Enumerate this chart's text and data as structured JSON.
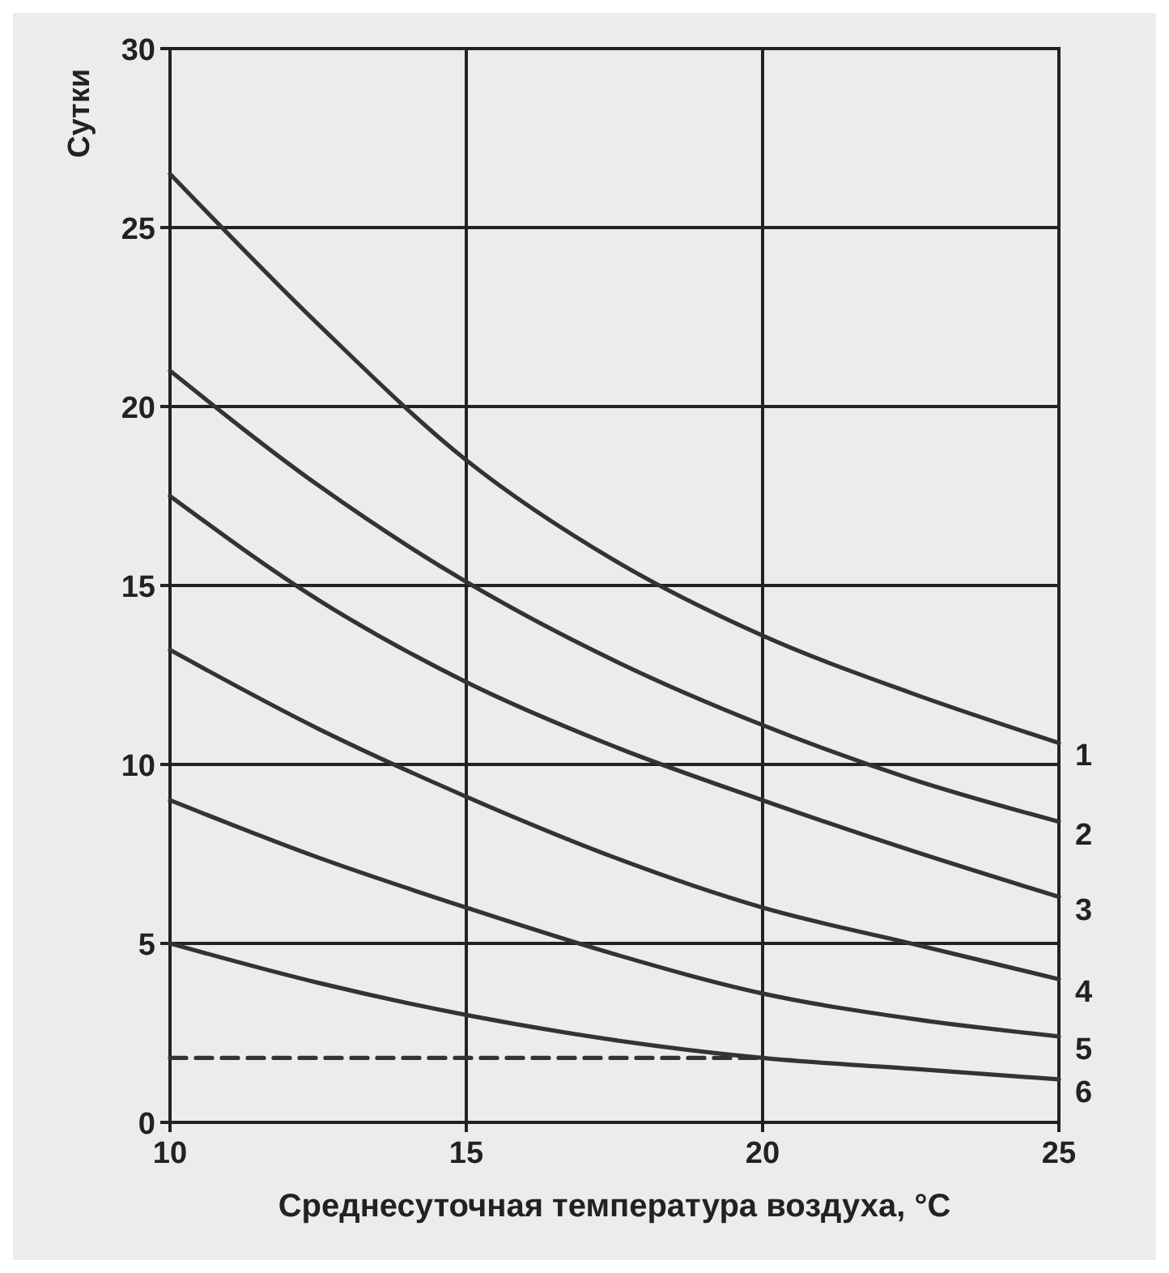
{
  "chart_data": {
    "type": "line",
    "xlabel": "Среднесуточная температура воздуха, °C",
    "ylabel": "Сутки",
    "x": [
      10,
      12.5,
      15,
      17.5,
      20,
      22.5,
      25
    ],
    "xlim": [
      10,
      25
    ],
    "xticks": [
      10,
      15,
      20,
      25
    ],
    "ylim": [
      0,
      30
    ],
    "yticks": [
      0,
      5,
      10,
      15,
      20,
      25,
      30
    ],
    "grid": true,
    "line_style": "solid",
    "series": [
      {
        "name": "1",
        "color": "#333333",
        "values": [
          26.5,
          22.3,
          18.5,
          15.7,
          13.6,
          12.0,
          10.6
        ]
      },
      {
        "name": "2",
        "color": "#333333",
        "values": [
          21,
          17.8,
          15.1,
          12.9,
          11.1,
          9.6,
          8.4
        ]
      },
      {
        "name": "3",
        "color": "#333333",
        "values": [
          17.5,
          14.6,
          12.3,
          10.5,
          9.0,
          7.6,
          6.3
        ]
      },
      {
        "name": "4",
        "color": "#333333",
        "values": [
          13.2,
          11.0,
          9.1,
          7.4,
          6.0,
          5.0,
          4.0
        ]
      },
      {
        "name": "5",
        "color": "#333333",
        "values": [
          9.0,
          7.4,
          6.0,
          4.7,
          3.6,
          2.9,
          2.4
        ]
      },
      {
        "name": "6",
        "color": "#333333",
        "values": [
          5.0,
          3.9,
          3.0,
          2.3,
          1.8,
          1.5,
          1.2
        ]
      },
      {
        "color": "#333333",
        "x": [
          10,
          20
        ],
        "values": [
          1.8,
          1.8
        ],
        "line_style": "dashed"
      }
    ]
  }
}
